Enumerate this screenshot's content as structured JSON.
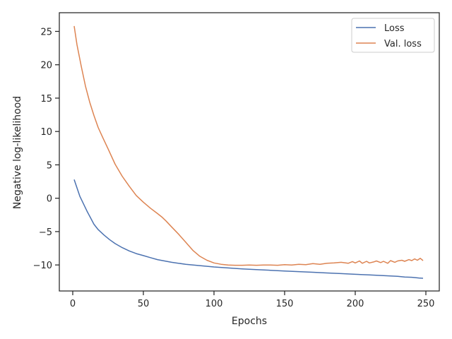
{
  "chart_data": {
    "type": "line",
    "title": "",
    "xlabel": "Epochs",
    "ylabel": "Negative log-likelihood",
    "xlim": [
      -9.5,
      259.5
    ],
    "ylim": [
      -13.9,
      27.8
    ],
    "xticks": [
      0,
      50,
      100,
      150,
      200,
      250
    ],
    "yticks": [
      -10,
      -5,
      0,
      5,
      10,
      15,
      20,
      25
    ],
    "grid": false,
    "legend_position": "top-right",
    "series": [
      {
        "name": "Loss",
        "color": "#4c72b0",
        "x": [
          1,
          5,
          10,
          15,
          18,
          22,
          26,
          30,
          35,
          40,
          45,
          50,
          55,
          60,
          70,
          80,
          90,
          100,
          110,
          120,
          130,
          140,
          150,
          160,
          170,
          180,
          190,
          200,
          210,
          220,
          225,
          230,
          235,
          240,
          245,
          248
        ],
        "y": [
          2.8,
          0.3,
          -1.9,
          -3.9,
          -4.7,
          -5.5,
          -6.2,
          -6.8,
          -7.4,
          -7.9,
          -8.3,
          -8.6,
          -8.9,
          -9.2,
          -9.6,
          -9.9,
          -10.1,
          -10.3,
          -10.45,
          -10.6,
          -10.7,
          -10.8,
          -10.9,
          -11.0,
          -11.1,
          -11.2,
          -11.3,
          -11.4,
          -11.5,
          -11.6,
          -11.65,
          -11.7,
          -11.8,
          -11.85,
          -11.95,
          -12.0
        ]
      },
      {
        "name": "Val. loss",
        "color": "#dd8452",
        "x": [
          1,
          3,
          6,
          9,
          12,
          15,
          18,
          21,
          25,
          30,
          35,
          40,
          45,
          50,
          55,
          60,
          63,
          66,
          70,
          75,
          80,
          85,
          90,
          95,
          100,
          105,
          110,
          115,
          120,
          125,
          130,
          135,
          140,
          145,
          150,
          155,
          160,
          165,
          170,
          175,
          180,
          185,
          190,
          195,
          198,
          200,
          203,
          205,
          208,
          210,
          213,
          215,
          218,
          220,
          223,
          225,
          228,
          230,
          233,
          235,
          238,
          240,
          242,
          244,
          246,
          248
        ],
        "y": [
          25.8,
          23.0,
          19.8,
          16.8,
          14.4,
          12.4,
          10.6,
          9.2,
          7.4,
          5.1,
          3.3,
          1.8,
          0.4,
          -0.6,
          -1.5,
          -2.3,
          -2.8,
          -3.4,
          -4.3,
          -5.4,
          -6.6,
          -7.8,
          -8.7,
          -9.3,
          -9.7,
          -9.9,
          -10.0,
          -10.05,
          -10.05,
          -10.0,
          -10.05,
          -10.0,
          -10.0,
          -10.05,
          -9.95,
          -10.0,
          -9.9,
          -9.95,
          -9.8,
          -9.9,
          -9.75,
          -9.7,
          -9.6,
          -9.75,
          -9.5,
          -9.7,
          -9.4,
          -9.75,
          -9.45,
          -9.7,
          -9.55,
          -9.4,
          -9.65,
          -9.45,
          -9.75,
          -9.35,
          -9.6,
          -9.4,
          -9.3,
          -9.45,
          -9.2,
          -9.35,
          -9.1,
          -9.3,
          -9.0,
          -9.35
        ]
      }
    ]
  }
}
